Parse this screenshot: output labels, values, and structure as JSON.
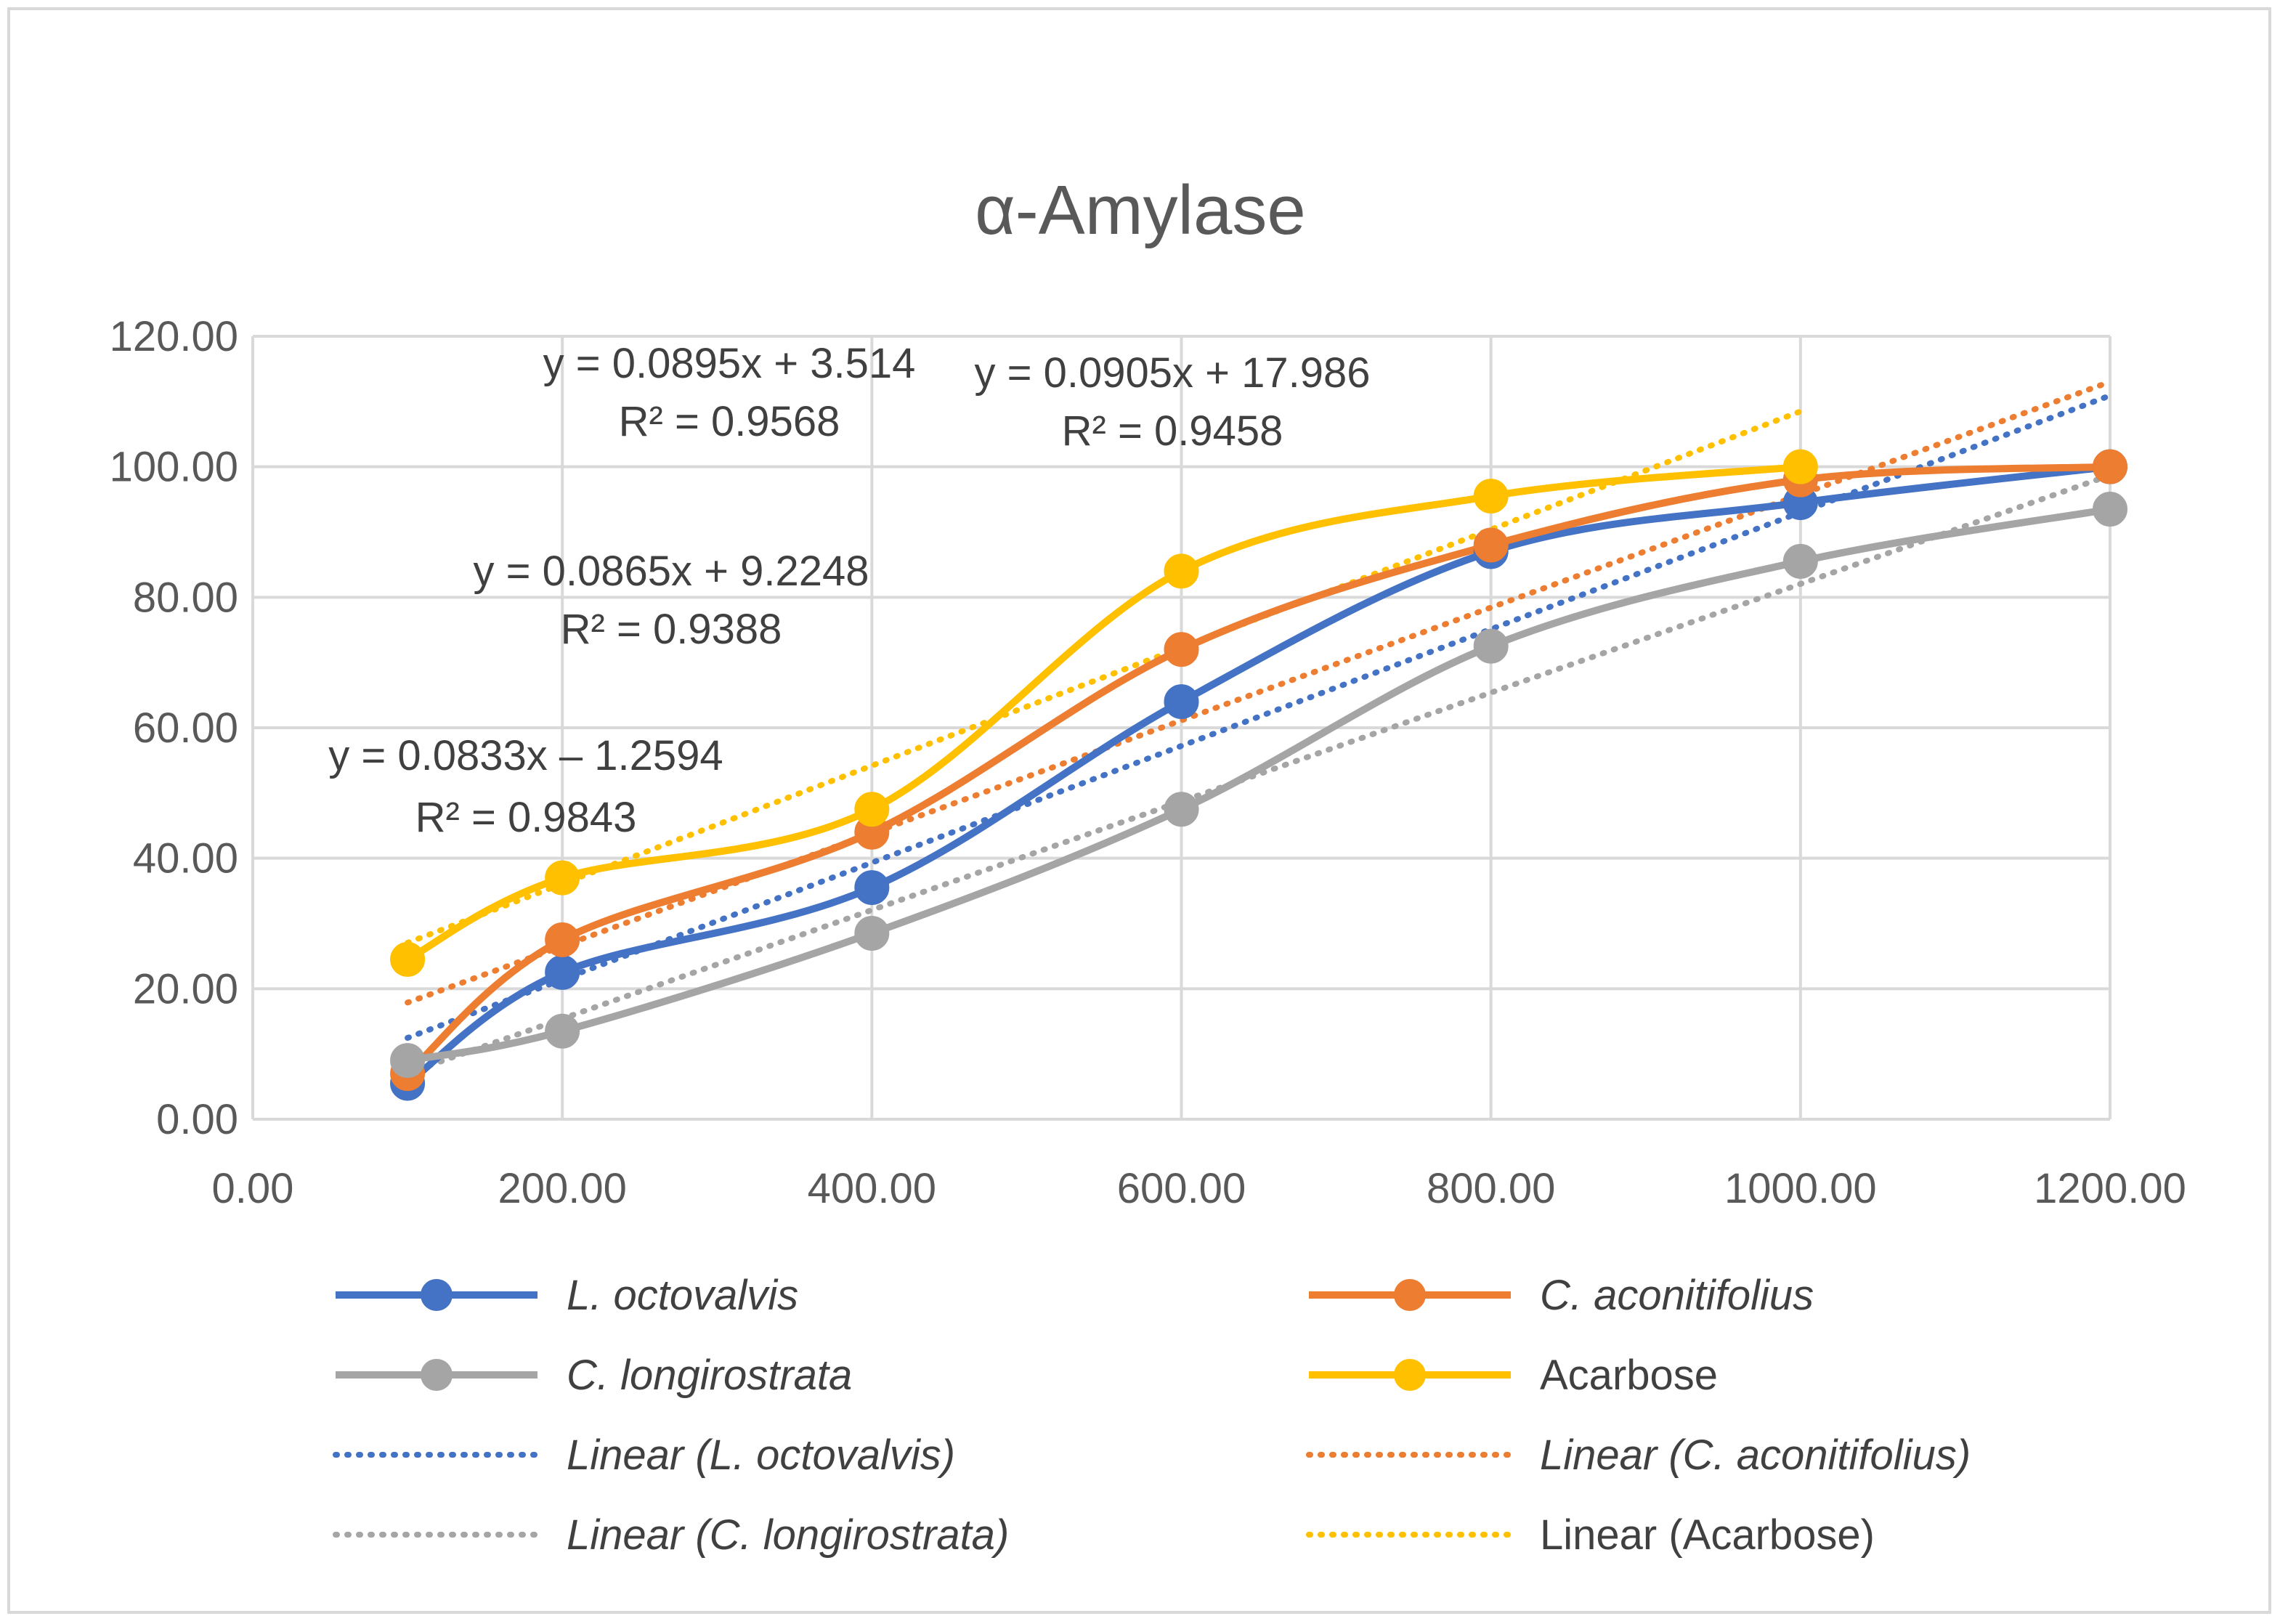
{
  "chart_data": {
    "type": "line",
    "title": "α-Amylase",
    "x": [
      100,
      200,
      400,
      600,
      800,
      1000,
      1200
    ],
    "xlim": [
      0,
      1200
    ],
    "ylim": [
      0,
      120
    ],
    "x_ticks": [
      "0.00",
      "200.00",
      "400.00",
      "600.00",
      "800.00",
      "1000.00",
      "1200.00"
    ],
    "y_ticks": [
      "0.00",
      "20.00",
      "40.00",
      "60.00",
      "80.00",
      "100.00",
      "120.00"
    ],
    "x_tick_values": [
      0,
      200,
      400,
      600,
      800,
      1000,
      1200
    ],
    "y_tick_values": [
      0,
      20,
      40,
      60,
      80,
      100,
      120
    ],
    "grid": true,
    "legend_position": "bottom",
    "series": [
      {
        "name": "L. octovalvis",
        "italic": true,
        "color": "#4472c4",
        "values": [
          5.5,
          22.5,
          35.5,
          64,
          87,
          94.5,
          100
        ]
      },
      {
        "name": "C. aconitifolius",
        "italic": true,
        "color": "#ed7d31",
        "values": [
          7,
          27.5,
          44,
          72,
          88,
          98,
          100
        ]
      },
      {
        "name": "C. longirostrata",
        "italic": true,
        "color": "#a5a5a5",
        "values": [
          9,
          13.5,
          28.5,
          47.5,
          72.5,
          85.5,
          93.5
        ]
      },
      {
        "name": "Acarbose",
        "italic": false,
        "color": "#ffc000",
        "values": [
          24.5,
          37,
          47.5,
          84,
          95.5,
          100,
          null
        ]
      }
    ],
    "trendlines": [
      {
        "name": "Linear (L. octovalvis)",
        "italic": true,
        "color": "#4472c4",
        "slope": 0.0895,
        "intercept": 3.514,
        "x_range": [
          100,
          1200
        ]
      },
      {
        "name": "Linear (C. aconitifolius)",
        "italic": true,
        "color": "#ed7d31",
        "slope": 0.0865,
        "intercept": 9.2248,
        "x_range": [
          100,
          1200
        ]
      },
      {
        "name": "Linear (C. longirostrata)",
        "italic": true,
        "color": "#a5a5a5",
        "slope": 0.0833,
        "intercept": -1.2594,
        "x_range": [
          100,
          1200
        ]
      },
      {
        "name": "Linear (Acarbose)",
        "italic": false,
        "color": "#ffc000",
        "slope": 0.0905,
        "intercept": 17.986,
        "x_range": [
          100,
          1000
        ]
      }
    ],
    "annotations": [
      {
        "eq": "y = 0.0895x + 3.514",
        "r2": "R² = 0.9568"
      },
      {
        "eq": "y = 0.0905x + 17.986",
        "r2": "R² = 0.9458"
      },
      {
        "eq": "y = 0.0865x + 9.2248",
        "r2": "R² = 0.9388"
      },
      {
        "eq": "y = 0.0833x – 1.2594",
        "r2": "R² = 0.9843"
      }
    ]
  }
}
